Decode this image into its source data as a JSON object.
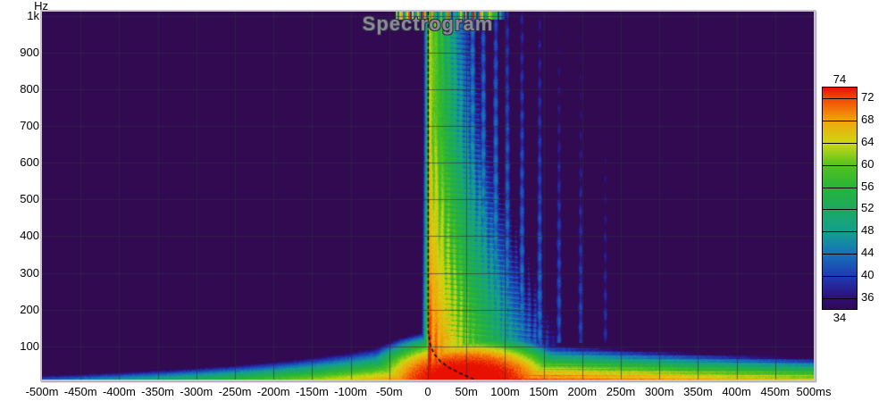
{
  "title": {
    "text": "Spectrogram",
    "color": "#8a8a96",
    "outline": "#34344a"
  },
  "y_axis": {
    "unit_label": "Hz",
    "ticks": [
      {
        "f": 1000,
        "label": "1k"
      },
      {
        "f": 900,
        "label": "900"
      },
      {
        "f": 800,
        "label": "800"
      },
      {
        "f": 700,
        "label": "700"
      },
      {
        "f": 600,
        "label": "600"
      },
      {
        "f": 500,
        "label": "500"
      },
      {
        "f": 400,
        "label": "400"
      },
      {
        "f": 300,
        "label": "300"
      },
      {
        "f": 200,
        "label": "200"
      },
      {
        "f": 100,
        "label": "100"
      }
    ]
  },
  "x_axis": {
    "ticks": [
      {
        "t": -500,
        "label": "-500m"
      },
      {
        "t": -450,
        "label": "-450m"
      },
      {
        "t": -400,
        "label": "-400m"
      },
      {
        "t": -350,
        "label": "-350m"
      },
      {
        "t": -300,
        "label": "-300m"
      },
      {
        "t": -250,
        "label": "-250m"
      },
      {
        "t": -200,
        "label": "-200m"
      },
      {
        "t": -150,
        "label": "-150m"
      },
      {
        "t": -100,
        "label": "-100m"
      },
      {
        "t": -50,
        "label": "-50m"
      },
      {
        "t": 0,
        "label": "0"
      },
      {
        "t": 50,
        "label": "50m"
      },
      {
        "t": 100,
        "label": "100m"
      },
      {
        "t": 150,
        "label": "150m"
      },
      {
        "t": 200,
        "label": "200m"
      },
      {
        "t": 250,
        "label": "250m"
      },
      {
        "t": 300,
        "label": "300m"
      },
      {
        "t": 350,
        "label": "350m"
      },
      {
        "t": 400,
        "label": "400m"
      },
      {
        "t": 450,
        "label": "450m"
      },
      {
        "t": 500,
        "label": "500ms"
      }
    ]
  },
  "colorbar": {
    "top_label": "74",
    "bottom_label": "34",
    "boundary_labels": [
      "72",
      "68",
      "64",
      "60",
      "56",
      "52",
      "48",
      "44",
      "40",
      "36"
    ],
    "min": 34,
    "max": 74,
    "step": 4
  },
  "chart_data": {
    "type": "heatmap",
    "title": "Spectrogram",
    "x_range_ms": [
      -500,
      500
    ],
    "y_range_hz": [
      10,
      1011
    ],
    "z_range_db": [
      34,
      74
    ],
    "grid": {
      "x_step_ms": 50,
      "y_step_hz": 100,
      "color": "rgba(48,44,62,0.6)"
    },
    "background_color": "#310a51",
    "palette": [
      [
        34,
        "#310a51"
      ],
      [
        36,
        "#2e0d76"
      ],
      [
        40,
        "#1e3ab4"
      ],
      [
        44,
        "#1572b8"
      ],
      [
        48,
        "#13a08e"
      ],
      [
        52,
        "#1ca960"
      ],
      [
        56,
        "#27b438"
      ],
      [
        60,
        "#52c21f"
      ],
      [
        64,
        "#cdd812"
      ],
      [
        68,
        "#f2a40c"
      ],
      [
        72,
        "#f24a05"
      ],
      [
        74,
        "#e81000"
      ]
    ],
    "model": {
      "background_db": 33,
      "noise_db": 1.3,
      "impulse": {
        "t0_ms": 1,
        "peak_db": 74,
        "peak_drop_db": 10.5,
        "peak_drop_fref_hz": 700,
        "peak_drop_exp": 0.75,
        "attack_db_per_ms": 3.4,
        "decay_base": 0.2,
        "decay_extra": 0.28,
        "decay_fref_hz": 950,
        "decay_exp": 1.3,
        "striation_period_ms": 8,
        "striation_depth_db": 2.8
      },
      "lf_tongue": {
        "f_max_hz": 135,
        "peak_db": 74,
        "drop_db": 38,
        "drop_exp": 1.35,
        "peak_time_min_ms": 5,
        "peak_time_extra_ms": 30,
        "decay_right_base": 0.018,
        "decay_right_extra": 0.1,
        "decay_right_exp": 1.6,
        "decay_left_base": 0.05,
        "decay_left_extra": 0.22,
        "decay_left_exp": 1.3
      },
      "hot_blob": {
        "t_center_ms": 50,
        "t_radius_ms": 95,
        "f_radius_hz": 92,
        "peak_db": 76,
        "falloff_db": 10
      },
      "reflections": {
        "times_ms": [
          58,
          72,
          88,
          103,
          122,
          145,
          170,
          198,
          230
        ],
        "levels_db": [
          50,
          48,
          47,
          45,
          44,
          43,
          41,
          40,
          38
        ],
        "width_ms": 3,
        "f_min_hz": 110,
        "f_ref_hz": 200,
        "level_drop_per_hz": 0.009
      },
      "top_strip": {
        "f_min_hz": 988,
        "t_min_ms": -42,
        "t_max_ms": 100,
        "base_db": 38,
        "span_db": 38
      },
      "contour": {
        "color": "#0c0c14",
        "dash": [
          4,
          3
        ],
        "points_t_f": [
          [
            0.5,
            1011
          ],
          [
            0.5,
            140
          ],
          [
            3,
            105
          ],
          [
            8,
            80
          ],
          [
            16,
            60
          ],
          [
            28,
            42
          ],
          [
            42,
            27
          ],
          [
            56,
            14
          ],
          [
            66,
            4
          ]
        ]
      }
    }
  }
}
